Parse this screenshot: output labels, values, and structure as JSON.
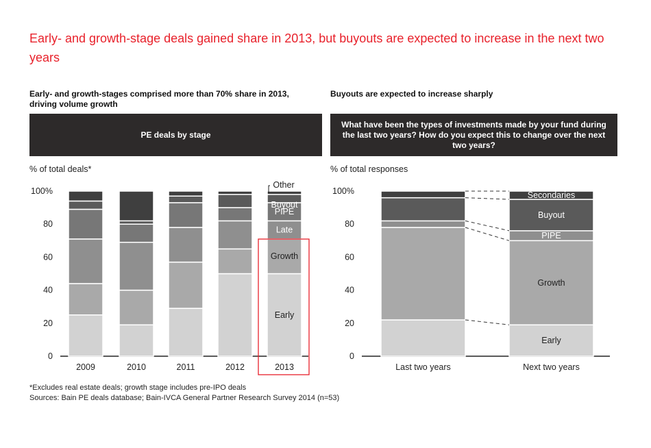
{
  "title": "Early- and growth-stage deals gained share in 2013, but buyouts are expected to increase in the next two years",
  "footnote": "*Excludes real estate deals; growth stage includes pre-IPO deals",
  "sources": "Sources: Bain PE deals database; Bain-IVCA General Partner Research Survey 2014 (n=53)",
  "left_panel": {
    "subtitle": "Early- and growth-stages comprised more than 70% share in 2013, driving volume growth",
    "banner": "PE deals by stage",
    "unit_label": "% of total deals*"
  },
  "right_panel": {
    "subtitle": "Buyouts are expected to increase sharply",
    "banner": "What have been the types of investments made by your fund during the last two years? How do you expect this to change over the next two years?",
    "unit_label": "% of total responses"
  },
  "colors": {
    "early": "#d2d2d2",
    "growth": "#a9a9a9",
    "late": "#8f8f8f",
    "pipe": "#777777",
    "buyout": "#5a5a5a",
    "other": "#3f3f3f",
    "secondaries": "#6e6e6e",
    "highlight": "#e8212b"
  },
  "chart_data": [
    {
      "type": "bar",
      "stacked": true,
      "title": "PE deals by stage",
      "ylabel": "% of total deals*",
      "ylim": [
        0,
        100
      ],
      "yticks": [
        "0",
        "20",
        "40",
        "60",
        "80",
        "100%"
      ],
      "categories": [
        "2009",
        "2010",
        "2011",
        "2012",
        "2013"
      ],
      "series": [
        {
          "name": "Early",
          "color_key": "early",
          "values": [
            25,
            19,
            29,
            50,
            50
          ]
        },
        {
          "name": "Growth",
          "color_key": "growth",
          "values": [
            19,
            21,
            28,
            15,
            21
          ]
        },
        {
          "name": "Late",
          "color_key": "late",
          "values": [
            27,
            29,
            21,
            17,
            11
          ]
        },
        {
          "name": "PIPE",
          "color_key": "pipe",
          "values": [
            18,
            11,
            15,
            8,
            11
          ]
        },
        {
          "name": "Buyout",
          "color_key": "buyout",
          "values": [
            5,
            2,
            4,
            8,
            5
          ]
        },
        {
          "name": "Other",
          "color_key": "other",
          "values": [
            6,
            18,
            3,
            2,
            2
          ]
        }
      ],
      "segment_labels": {
        "category": "2013",
        "labels": [
          "Early",
          "Growth",
          "Late",
          "PIPE",
          "Buyout",
          "Other"
        ]
      },
      "highlight": "2013"
    },
    {
      "type": "bar",
      "stacked": true,
      "title": "What have been the types of investments made by your fund during the last two years? How do you expect this to change over the next two years?",
      "ylabel": "% of total responses",
      "ylim": [
        0,
        100
      ],
      "yticks": [
        "0",
        "20",
        "40",
        "60",
        "80",
        "100%"
      ],
      "categories": [
        "Last two years",
        "Next two years"
      ],
      "series": [
        {
          "name": "Early",
          "color_key": "early",
          "values": [
            22,
            19
          ]
        },
        {
          "name": "Growth",
          "color_key": "growth",
          "values": [
            56,
            51
          ]
        },
        {
          "name": "PIPE",
          "color_key": "late",
          "values": [
            4,
            6
          ]
        },
        {
          "name": "Buyout",
          "color_key": "buyout",
          "values": [
            14,
            19
          ]
        },
        {
          "name": "Secondaries",
          "color_key": "other",
          "values": [
            4,
            5
          ]
        }
      ],
      "segment_labels": {
        "category": "Next two years",
        "labels": [
          "Early",
          "Growth",
          "PIPE",
          "Buyout",
          "Secondaries"
        ]
      }
    }
  ]
}
